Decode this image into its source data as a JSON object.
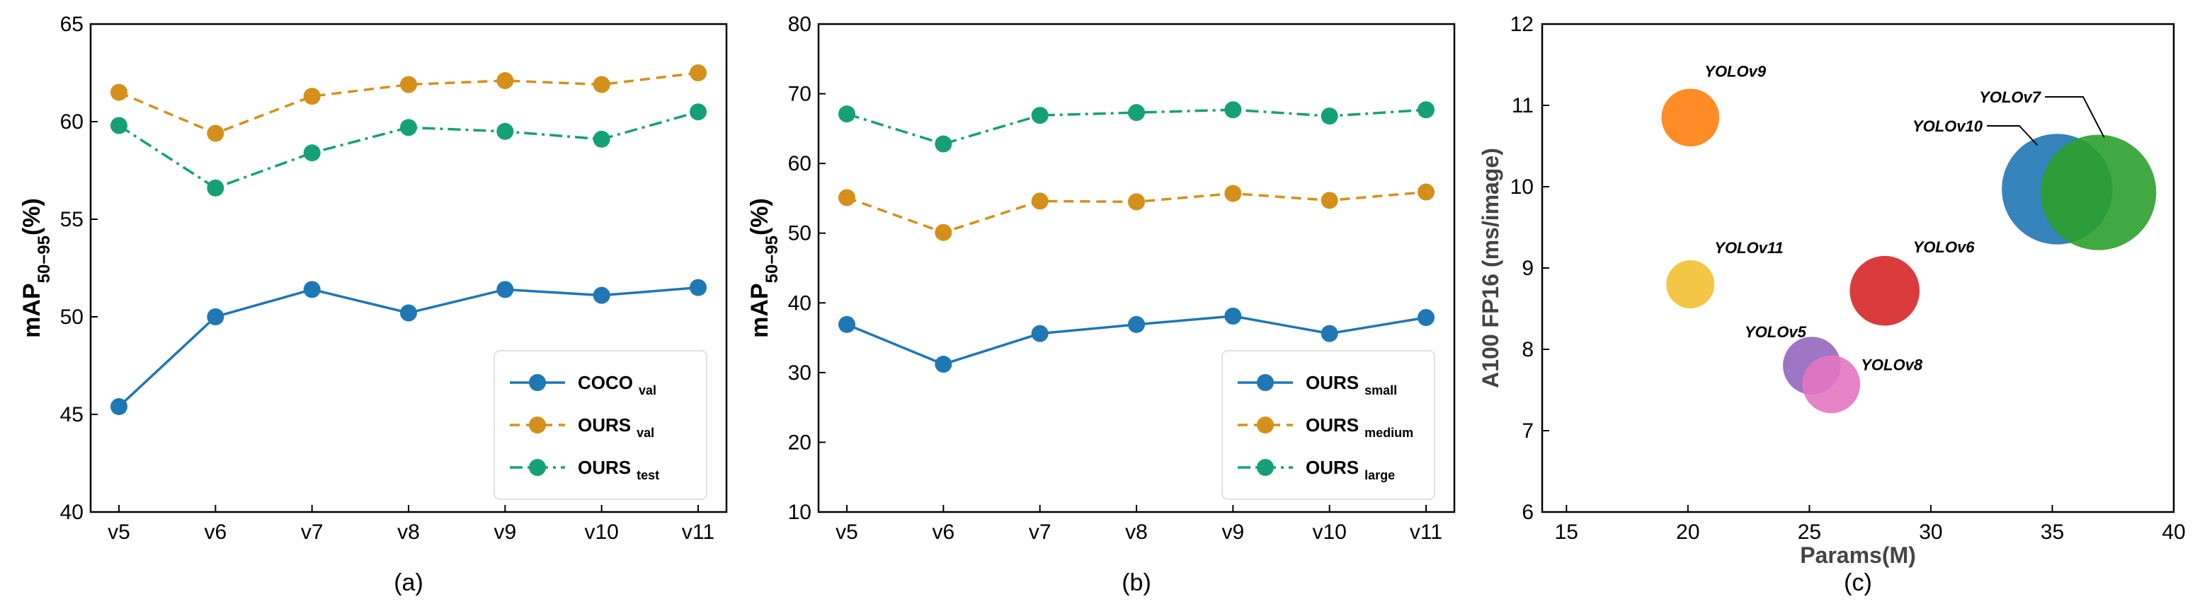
{
  "chart_data": [
    {
      "type": "line",
      "caption": "(a)",
      "xlabel": "",
      "ylabel_main": "mAP",
      "ylabel_sub": "50−95",
      "ylabel_tail": "(%)",
      "categories": [
        "v5",
        "v6",
        "v7",
        "v8",
        "v9",
        "v10",
        "v11"
      ],
      "ylim": [
        40,
        65
      ],
      "yticks": [
        40,
        45,
        50,
        55,
        60,
        65
      ],
      "legend_position": "lower-right",
      "series": [
        {
          "name": "COCO",
          "sub": "val",
          "color": "#1f77b4",
          "dash": "solid",
          "values": [
            45.4,
            50.0,
            51.4,
            50.2,
            51.4,
            51.1,
            51.5
          ]
        },
        {
          "name": "OURS",
          "sub": "val",
          "color": "#d4901a",
          "dash": "dashed",
          "values": [
            61.5,
            59.4,
            61.3,
            61.9,
            62.1,
            61.9,
            62.5
          ]
        },
        {
          "name": "OURS",
          "sub": "test",
          "color": "#16a077",
          "dash": "dashdot",
          "values": [
            59.8,
            56.6,
            58.4,
            59.7,
            59.5,
            59.1,
            60.5
          ]
        }
      ]
    },
    {
      "type": "line",
      "caption": "(b)",
      "xlabel": "",
      "ylabel_main": "mAP",
      "ylabel_sub": "50−95",
      "ylabel_tail": "(%)",
      "categories": [
        "v5",
        "v6",
        "v7",
        "v8",
        "v9",
        "v10",
        "v11"
      ],
      "ylim": [
        10,
        80
      ],
      "yticks": [
        10,
        20,
        30,
        40,
        50,
        60,
        70,
        80
      ],
      "legend_position": "lower-right",
      "series": [
        {
          "name": "OURS",
          "sub": "small",
          "color": "#1f77b4",
          "dash": "solid",
          "values": [
            36.9,
            31.2,
            35.6,
            36.9,
            38.1,
            35.6,
            37.9
          ]
        },
        {
          "name": "OURS",
          "sub": "medium",
          "color": "#d4901a",
          "dash": "dashed",
          "values": [
            55.1,
            50.1,
            54.6,
            54.5,
            55.7,
            54.7,
            55.9
          ]
        },
        {
          "name": "OURS",
          "sub": "large",
          "color": "#16a077",
          "dash": "dashdot",
          "values": [
            67.1,
            62.8,
            66.9,
            67.3,
            67.7,
            66.8,
            67.7
          ]
        }
      ]
    },
    {
      "type": "scatter",
      "caption": "(c)",
      "xlabel": "Params(M)",
      "ylabel": "A100 FP16 (ms/image)",
      "xlim": [
        14,
        40
      ],
      "ylim": [
        6,
        12
      ],
      "xticks": [
        15,
        20,
        25,
        30,
        35,
        40
      ],
      "yticks": [
        6,
        7,
        8,
        9,
        10,
        11,
        12
      ],
      "points": [
        {
          "label": "YOLOv9",
          "x": 20.1,
          "y": 10.85,
          "size": 1.2,
          "color": "#ff7f0e"
        },
        {
          "label": "YOLOv11",
          "x": 20.1,
          "y": 8.8,
          "size": 1.0,
          "color": "#f2c031"
        },
        {
          "label": "YOLOv6",
          "x": 28.1,
          "y": 8.72,
          "size": 1.45,
          "color": "#d62728"
        },
        {
          "label": "YOLOv5",
          "x": 25.1,
          "y": 7.8,
          "size": 1.2,
          "color": "#9467bd"
        },
        {
          "label": "YOLOv8",
          "x": 25.9,
          "y": 7.57,
          "size": 1.2,
          "color": "#e377c2"
        },
        {
          "label": "YOLOv10",
          "x": 35.2,
          "y": 9.97,
          "size": 2.3,
          "color": "#1f77b4"
        },
        {
          "label": "YOLOv7",
          "x": 36.9,
          "y": 9.93,
          "size": 2.4,
          "color": "#2ca02c"
        }
      ]
    }
  ]
}
